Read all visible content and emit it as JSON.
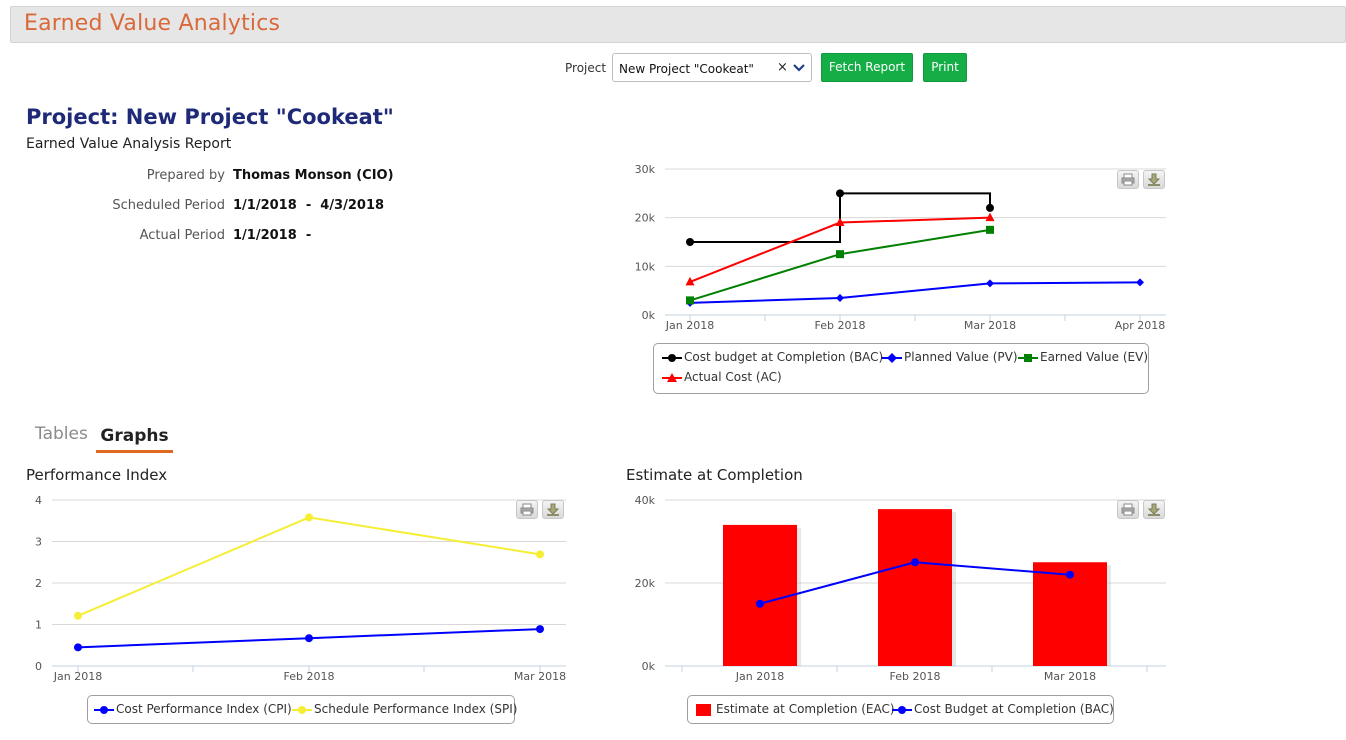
{
  "header": {
    "title": "Earned Value Analytics"
  },
  "controls": {
    "project_label": "Project",
    "project_value": "New Project \"Cookeat\"",
    "clear_glyph": "×",
    "fetch_label": "Fetch Report",
    "print_label": "Print"
  },
  "project": {
    "title": "Project: New Project \"Cookeat\"",
    "subtitle": "Earned Value Analysis Report",
    "meta": [
      {
        "label": "Prepared by",
        "value": "Thomas Monson (CIO)"
      },
      {
        "label": "Scheduled Period",
        "value": "1/1/2018  -  4/3/2018"
      },
      {
        "label": "Actual Period",
        "value": "1/1/2018  -"
      }
    ]
  },
  "tabs": [
    {
      "label": "Tables",
      "active": false
    },
    {
      "label": "Graphs",
      "active": true
    }
  ],
  "sections": {
    "performance_title": "Performance Index",
    "eac_title": "Estimate at Completion"
  },
  "colors": {
    "accent": "#d9693a",
    "button": "#14ad46",
    "tab_underline": "#e0691f",
    "title": "#1e2a78"
  },
  "chart_data": [
    {
      "type": "line",
      "categories": [
        "Jan 2018",
        "Feb 2018",
        "Mar 2018",
        "Apr 2018"
      ],
      "ylim": [
        0,
        30000
      ],
      "yticks": [
        "0k",
        "10k",
        "20k",
        "30k"
      ],
      "legend_position": "bottom",
      "series": [
        {
          "name": "Cost budget at Completion (BAC)",
          "color": "#000000",
          "marker": "circle",
          "step": true,
          "points": [
            [
              0,
              15000
            ],
            [
              1,
              15000
            ],
            [
              1,
              25000
            ],
            [
              2,
              25000
            ],
            [
              2,
              22000
            ]
          ]
        },
        {
          "name": "Planned Value (PV)",
          "color": "#0000ff",
          "marker": "diamond",
          "points": [
            [
              0,
              2500
            ],
            [
              1,
              3500
            ],
            [
              2,
              6500
            ],
            [
              3,
              6700
            ]
          ]
        },
        {
          "name": "Earned Value (EV)",
          "color": "#008000",
          "marker": "square",
          "points": [
            [
              0,
              3000
            ],
            [
              1,
              12500
            ],
            [
              2,
              17500
            ]
          ]
        },
        {
          "name": "Actual Cost (AC)",
          "color": "#ff0000",
          "marker": "triangle",
          "points": [
            [
              0,
              6800
            ],
            [
              1,
              19000
            ],
            [
              2,
              20000
            ]
          ]
        }
      ]
    },
    {
      "type": "line",
      "categories": [
        "Jan 2018",
        "Feb 2018",
        "Mar 2018"
      ],
      "ylim": [
        0,
        4
      ],
      "yticks": [
        "0",
        "1",
        "2",
        "3",
        "4"
      ],
      "legend_position": "bottom",
      "series": [
        {
          "name": "Cost Performance Index (CPI)",
          "color": "#0000ff",
          "marker": "circle",
          "values": [
            0.45,
            0.67,
            0.89
          ]
        },
        {
          "name": "Schedule Performance Index (SPI)",
          "color": "#f5ee35",
          "marker": "circle",
          "values": [
            1.21,
            3.58,
            2.69
          ]
        }
      ]
    },
    {
      "type": "bar",
      "categories": [
        "Jan 2018",
        "Feb 2018",
        "Mar 2018"
      ],
      "ylim": [
        0,
        40000
      ],
      "yticks": [
        "0k",
        "20k",
        "40k"
      ],
      "legend_position": "bottom",
      "series": [
        {
          "name": "Estimate at Completion (EAC)",
          "kind": "bar",
          "color": "#ff0000",
          "values": [
            34000,
            37800,
            25000
          ]
        },
        {
          "name": "Cost Budget at Completion (BAC)",
          "kind": "line",
          "color": "#0000ff",
          "marker": "circle",
          "values": [
            15000,
            25000,
            22000
          ]
        }
      ]
    }
  ]
}
